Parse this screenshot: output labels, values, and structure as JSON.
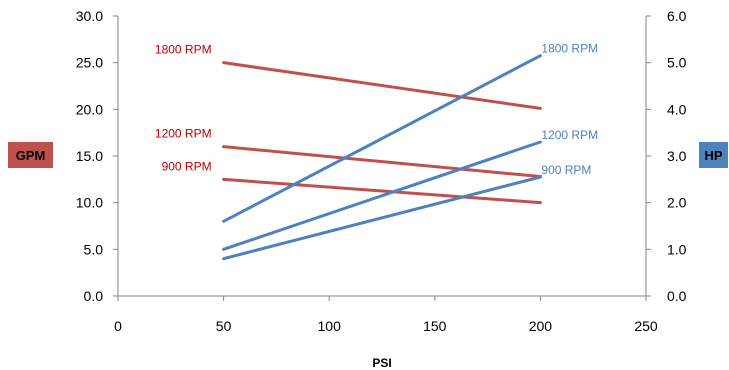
{
  "chart_data": {
    "type": "line",
    "x_axis": {
      "label": "PSI",
      "range": [
        0,
        250
      ],
      "ticks": [
        "0",
        "50",
        "100",
        "150",
        "200",
        "250"
      ]
    },
    "y_left": {
      "label": "GPM",
      "range": [
        0,
        30
      ],
      "ticks": [
        "0.0",
        "5.0",
        "10.0",
        "15.0",
        "20.0",
        "25.0",
        "30.0"
      ],
      "color": "#c0504d"
    },
    "y_right": {
      "label": "HP",
      "range": [
        0,
        6
      ],
      "ticks": [
        "0.0",
        "1.0",
        "2.0",
        "3.0",
        "4.0",
        "5.0",
        "6.0"
      ],
      "color": "#4f81bd"
    },
    "grid": false,
    "series": [
      {
        "name": "1800 RPM",
        "axis": "left",
        "color": "#c0504d",
        "x": [
          50,
          200
        ],
        "y": [
          25.0,
          20.1
        ]
      },
      {
        "name": "1200 RPM",
        "axis": "left",
        "color": "#c0504d",
        "x": [
          50,
          200
        ],
        "y": [
          16.0,
          12.8
        ]
      },
      {
        "name": "900 RPM",
        "axis": "left",
        "color": "#c0504d",
        "x": [
          50,
          200
        ],
        "y": [
          12.5,
          10.0
        ]
      },
      {
        "name": "1800 RPM",
        "axis": "right",
        "color": "#4f81bd",
        "x": [
          50,
          200
        ],
        "y": [
          1.6,
          5.15
        ]
      },
      {
        "name": "1200 RPM",
        "axis": "right",
        "color": "#4f81bd",
        "x": [
          50,
          200
        ],
        "y": [
          1.0,
          3.3
        ]
      },
      {
        "name": "900 RPM",
        "axis": "right",
        "color": "#4f81bd",
        "x": [
          50,
          200
        ],
        "y": [
          0.8,
          2.55
        ]
      }
    ]
  }
}
